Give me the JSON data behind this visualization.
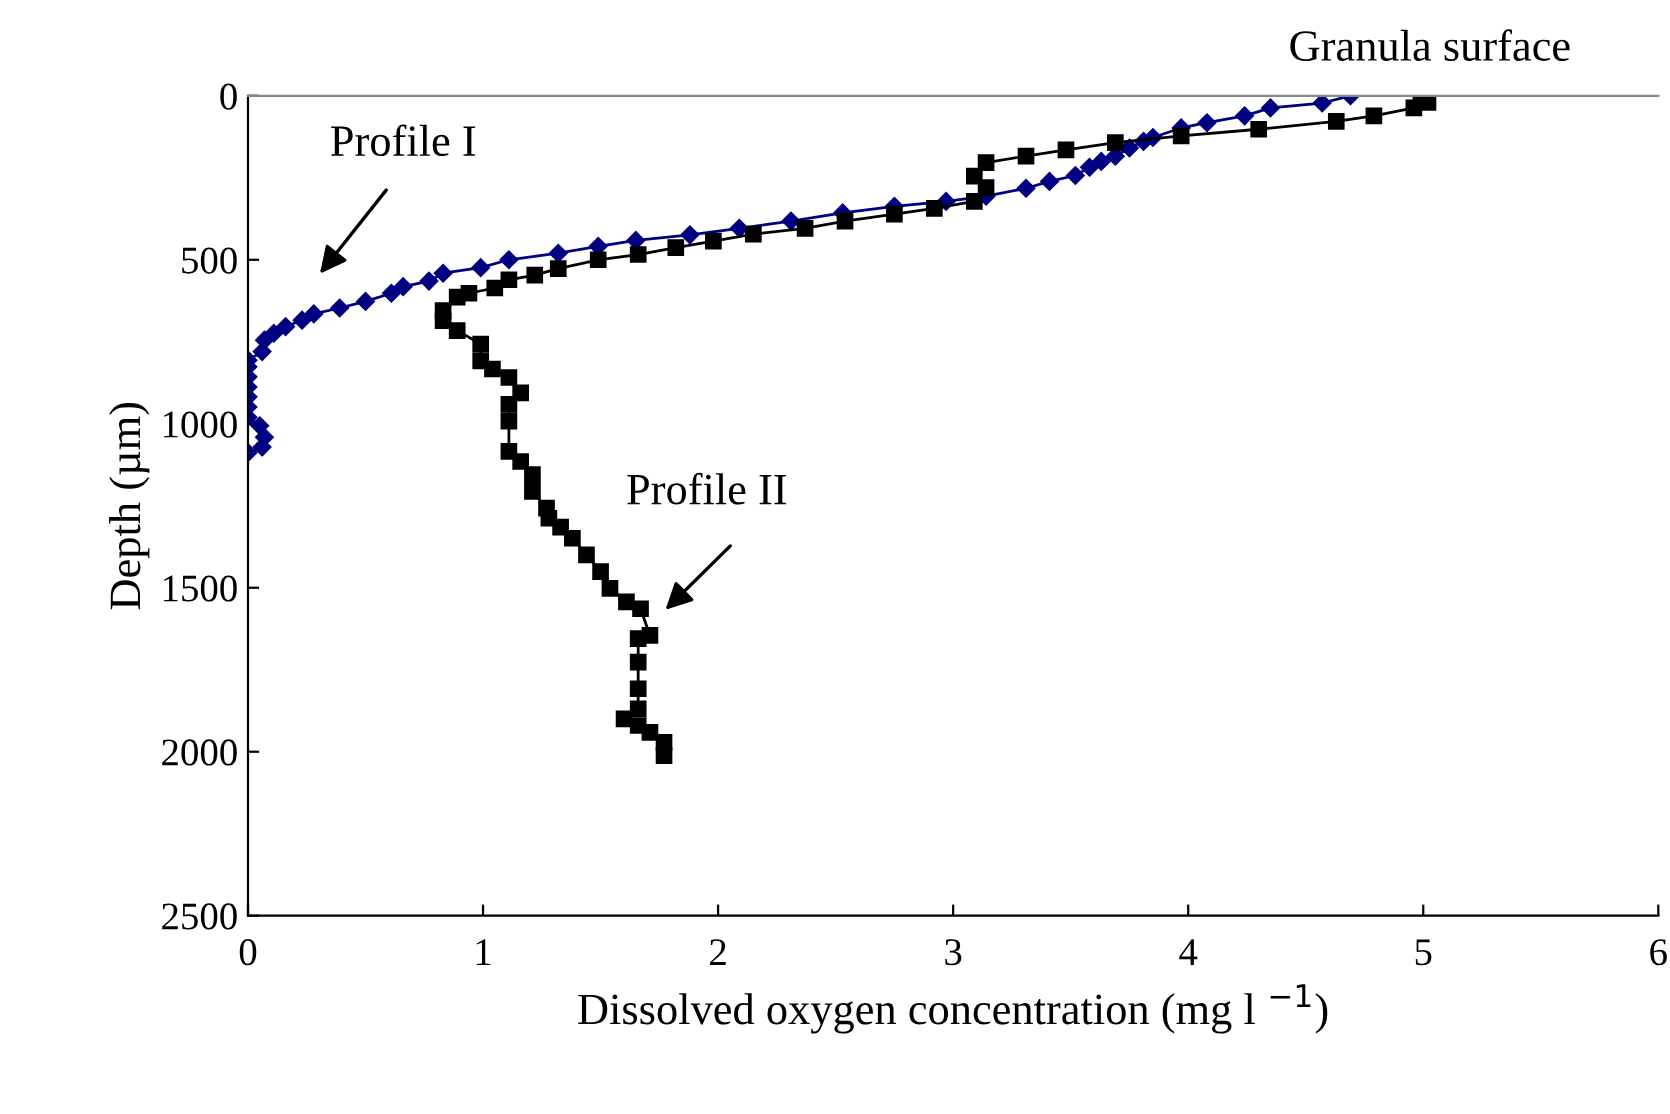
{
  "chart_data": {
    "type": "line",
    "xlabel": "Dissolved oxygen concentration (mg l $^{−1}$)",
    "ylabel": "Depth (µm)",
    "xlim": [
      0,
      6
    ],
    "xticks": [
      0,
      1,
      2,
      3,
      4,
      5,
      6
    ],
    "ylim": [
      2500,
      0
    ],
    "yticks": [
      0,
      500,
      1000,
      1500,
      2000,
      2500
    ],
    "grid": false,
    "legend": false,
    "series": [
      {
        "color": "#000080",
        "marker": "diamond",
        "x": [
          4.69,
          4.57,
          4.35,
          4.24,
          4.08,
          3.97,
          3.85,
          3.81,
          3.75,
          3.69,
          3.63,
          3.58,
          3.52,
          3.41,
          3.31,
          3.14,
          2.97,
          2.75,
          2.53,
          2.31,
          2.09,
          1.88,
          1.65,
          1.49,
          1.32,
          1.11,
          0.99,
          0.83,
          0.77,
          0.66,
          0.61,
          0.5,
          0.39,
          0.28,
          0.23,
          0.16,
          0.11,
          0.07,
          0.06,
          0.0,
          0.0,
          0.0,
          0.0,
          0.0,
          0.0,
          0.0,
          0.05,
          0.07,
          0.06,
          0.0
        ],
        "values": [
          0,
          22,
          37,
          61,
          82,
          98,
          127,
          139,
          159,
          184,
          200,
          218,
          243,
          261,
          282,
          306,
          322,
          337,
          357,
          382,
          404,
          424,
          441,
          459,
          480,
          500,
          524,
          541,
          565,
          582,
          602,
          627,
          647,
          665,
          684,
          704,
          724,
          745,
          780,
          806,
          826,
          857,
          888,
          918,
          949,
          980,
          1006,
          1041,
          1071,
          1088
        ]
      },
      {
        "color": "#000000",
        "marker": "square",
        "x": [
          4.99,
          5.02,
          4.96,
          4.79,
          4.63,
          4.3,
          3.97,
          3.69,
          3.48,
          3.31,
          3.14,
          3.09,
          3.14,
          3.09,
          2.92,
          2.75,
          2.54,
          2.37,
          2.15,
          1.98,
          1.82,
          1.66,
          1.49,
          1.32,
          1.22,
          1.11,
          1.05,
          0.94,
          0.89,
          0.83,
          0.83,
          0.89,
          0.99,
          0.99,
          1.04,
          1.11,
          1.16,
          1.11,
          1.11,
          1.11,
          1.16,
          1.21,
          1.21,
          1.27,
          1.28,
          1.33,
          1.38,
          1.44,
          1.5,
          1.54,
          1.61,
          1.67,
          1.71,
          1.66,
          1.66,
          1.66,
          1.66,
          1.6,
          1.66,
          1.71,
          1.77,
          1.77
        ],
        "values": [
          0,
          20,
          37,
          61,
          78,
          102,
          122,
          143,
          165,
          184,
          204,
          245,
          280,
          322,
          343,
          361,
          382,
          404,
          422,
          443,
          463,
          484,
          500,
          527,
          547,
          561,
          586,
          602,
          614,
          655,
          686,
          716,
          757,
          808,
          833,
          859,
          906,
          941,
          992,
          1084,
          1115,
          1155,
          1206,
          1257,
          1288,
          1315,
          1349,
          1400,
          1451,
          1502,
          1543,
          1564,
          1645,
          1655,
          1727,
          1808,
          1869,
          1900,
          1920,
          1941,
          1971,
          2012
        ]
      }
    ],
    "annotations": [
      "Profile I",
      "Profile II",
      "Granula surface"
    ]
  }
}
